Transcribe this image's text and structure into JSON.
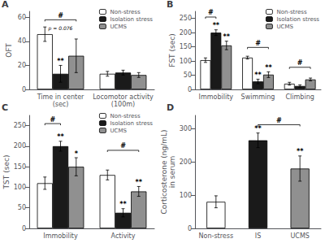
{
  "chart_data": [
    {
      "type": "bar",
      "title": "A",
      "ylabel": "OFT",
      "categories": [
        "Time in center\n(sec)",
        "Locomotor activity\n(100m)"
      ],
      "series": [
        {
          "name": "Non-stress",
          "color": "#ffffff",
          "values": [
            46,
            13
          ],
          "errors": [
            6,
            2
          ]
        },
        {
          "name": "Isolation stress",
          "color": "#1a1a1a",
          "values": [
            13,
            14
          ],
          "errors": [
            7,
            2
          ],
          "stars": [
            "**",
            null
          ]
        },
        {
          "name": "UCMS",
          "color": "#909090",
          "values": [
            28,
            12
          ],
          "errors": [
            14,
            2
          ]
        }
      ],
      "ylim": [
        0,
        65
      ],
      "yticks": [
        0,
        20,
        40,
        60
      ],
      "grid": false,
      "legend": "upper right",
      "brackets": [
        {
          "category": "Time in center\n(sec)",
          "from": "Non-stress",
          "to": "UCMS",
          "y": 58,
          "label": "#"
        }
      ],
      "annotations": [
        {
          "text": "p = 0.076",
          "category": "Time in center\n(sec)",
          "y": 49
        }
      ]
    },
    {
      "type": "bar",
      "title": "B",
      "ylabel": "FST (sec)",
      "categories": [
        "Immobility",
        "Swimming",
        "Climbing"
      ],
      "series": [
        {
          "name": "Non-stress",
          "color": "#ffffff",
          "values": [
            103,
            112,
            20
          ],
          "errors": [
            8,
            5,
            5
          ]
        },
        {
          "name": "Isolation stress",
          "color": "#1a1a1a",
          "values": [
            200,
            28,
            12
          ],
          "errors": [
            10,
            8,
            4
          ],
          "stars": [
            "**",
            "**",
            null
          ]
        },
        {
          "name": "UCMS",
          "color": "#909090",
          "values": [
            155,
            52,
            35
          ],
          "errors": [
            15,
            10,
            5
          ],
          "stars": [
            "**",
            "**",
            null
          ]
        }
      ],
      "ylim": [
        0,
        275
      ],
      "yticks": [
        0,
        50,
        100,
        150,
        200,
        250
      ],
      "grid": false,
      "legend": "upper right",
      "brackets": [
        {
          "category": "Immobility",
          "from": "Non-stress",
          "to": "Isolation stress",
          "y": 255,
          "label": "#"
        },
        {
          "category": "Swimming",
          "from": "Non-stress",
          "to": "UCMS",
          "y": 148,
          "label": "#"
        },
        {
          "category": "Climbing",
          "from": "Non-stress",
          "to": "UCMS",
          "y": 78,
          "label": "#"
        }
      ]
    },
    {
      "type": "bar",
      "title": "C",
      "ylabel": "TST (sec)",
      "categories": [
        "Immobility",
        "Activity"
      ],
      "series": [
        {
          "name": "Non-stress",
          "color": "#ffffff",
          "values": [
            110,
            130
          ],
          "errors": [
            15,
            12
          ]
        },
        {
          "name": "Isolation stress",
          "color": "#1a1a1a",
          "values": [
            200,
            38
          ],
          "errors": [
            12,
            10
          ],
          "stars": [
            "**",
            "**"
          ]
        },
        {
          "name": "UCMS",
          "color": "#909090",
          "values": [
            150,
            90
          ],
          "errors": [
            22,
            12
          ],
          "stars": [
            "*",
            "**"
          ]
        }
      ],
      "ylim": [
        0,
        275
      ],
      "yticks": [
        0,
        50,
        100,
        150,
        200,
        250
      ],
      "grid": false,
      "legend": "upper right",
      "brackets": [
        {
          "category": "Immobility",
          "from": "Non-stress",
          "to": "Isolation stress",
          "y": 255,
          "label": "#"
        },
        {
          "category": "Activity",
          "from": "Non-stress",
          "to": "UCMS",
          "y": 190,
          "label": "#"
        }
      ]
    },
    {
      "type": "bar",
      "title": "D",
      "ylabel": "Corticosterone (ng/mL)\nin serum",
      "categories": [
        "Non-stress",
        "IS",
        "UCMS"
      ],
      "values": [
        80,
        265,
        180
      ],
      "errors": [
        18,
        22,
        38
      ],
      "colors": [
        "#ffffff",
        "#1a1a1a",
        "#909090"
      ],
      "stars": [
        null,
        "**",
        "**"
      ],
      "ylim": [
        0,
        340
      ],
      "yticks": [
        0,
        100,
        200,
        300
      ],
      "grid": false,
      "brackets": [
        {
          "from": "IS",
          "to": "UCMS",
          "y": 312,
          "label": "#"
        }
      ]
    }
  ]
}
